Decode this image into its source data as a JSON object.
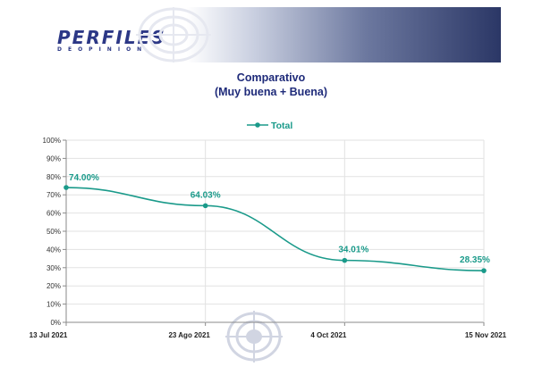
{
  "header": {
    "logo_text": "PERFILES",
    "logo_subtext": "DEOPINION"
  },
  "chart_data": {
    "type": "line",
    "title": "Comparativo",
    "subtitle": "(Muy buena + Buena)",
    "categories": [
      "13 Jul 2021",
      "23 Ago 2021",
      "4 Oct 2021",
      "15 Nov 2021"
    ],
    "series": [
      {
        "name": "Total",
        "values": [
          74.0,
          64.03,
          34.01,
          28.35
        ],
        "color": "#1a9a8a"
      }
    ],
    "data_labels": [
      "74.00%",
      "64.03%",
      "34.01%",
      "28.35%"
    ],
    "y_ticks": [
      "0%",
      "10%",
      "20%",
      "30%",
      "40%",
      "50%",
      "60%",
      "70%",
      "80%",
      "90%",
      "100%"
    ],
    "ylim": [
      0,
      100
    ],
    "xlabel": "",
    "ylabel": "",
    "grid": true,
    "legend_position": "top"
  }
}
